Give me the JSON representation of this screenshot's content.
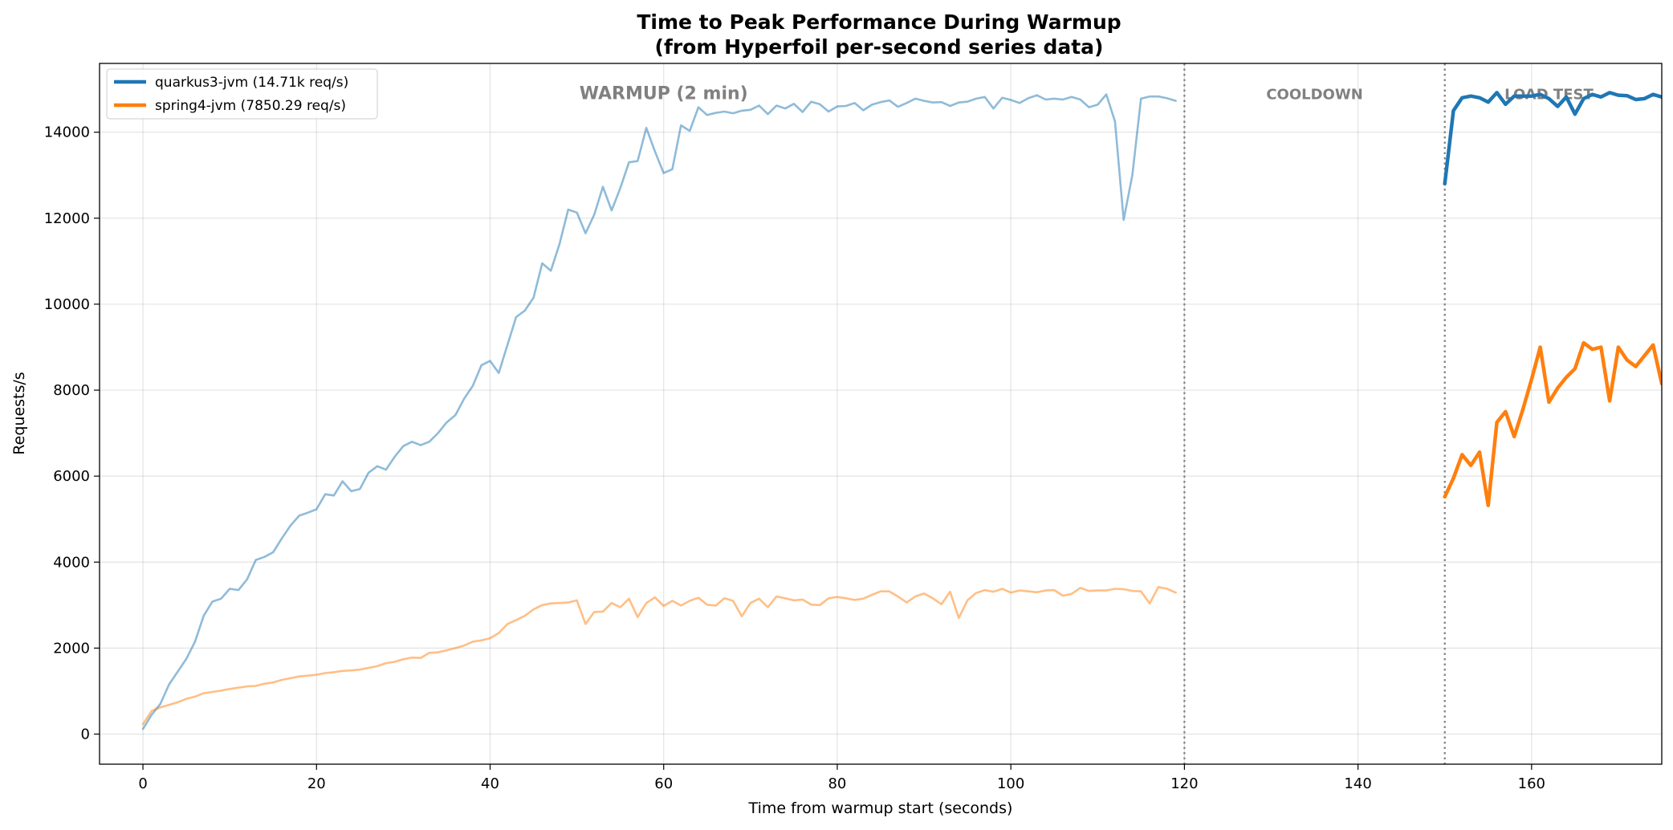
{
  "chart_data": {
    "type": "line",
    "title": "Time to Peak Performance During Warmup",
    "subtitle": "(from Hyperfoil per-second series data)",
    "xlabel": "Time from warmup start (seconds)",
    "ylabel": "Requests/s",
    "xlim": [
      -5,
      175
    ],
    "ylim": [
      -700,
      15600
    ],
    "xticks": [
      0,
      20,
      40,
      60,
      80,
      100,
      120,
      140,
      160
    ],
    "yticks": [
      0,
      2000,
      4000,
      6000,
      8000,
      10000,
      12000,
      14000
    ],
    "grid": true,
    "legend_position": "top-left",
    "phase_boundaries": [
      120,
      150
    ],
    "phases": [
      {
        "label": "WARMUP (2 min)",
        "x": 60,
        "y": 14900
      },
      {
        "label": "COOLDOWN",
        "x": 135,
        "y": 14900
      },
      {
        "label": "LOAD TEST",
        "x": 162,
        "y": 14900
      }
    ],
    "series": [
      {
        "name": "quarkus3-jvm (14.71k req/s)",
        "color": "#1f77b4",
        "warmup": {
          "x": [
            0,
            1,
            2,
            3,
            4,
            5,
            6,
            7,
            8,
            9,
            10,
            11,
            12,
            13,
            14,
            15,
            16,
            17,
            18,
            19,
            20,
            21,
            22,
            23,
            24,
            25,
            26,
            27,
            28,
            29,
            30,
            31,
            32,
            33,
            34,
            35,
            36,
            37,
            38,
            39,
            40,
            41,
            42,
            43,
            44,
            45,
            46,
            47,
            48,
            49,
            50,
            51,
            52,
            53,
            54,
            55,
            56,
            57,
            58,
            59,
            60,
            61,
            62,
            63,
            64,
            65,
            66,
            67,
            68,
            69,
            70,
            71,
            72,
            73,
            74,
            75,
            76,
            77,
            78,
            79,
            80,
            81,
            82,
            83,
            84,
            85,
            86,
            87,
            88,
            89,
            90,
            91,
            92,
            93,
            94,
            95,
            96,
            97,
            98,
            99,
            100,
            101,
            102,
            103,
            104,
            105,
            106,
            107,
            108,
            109,
            110,
            111,
            112,
            113,
            114,
            115,
            116,
            117,
            118,
            119
          ],
          "y": [
            120,
            450,
            700,
            1150,
            1450,
            1750,
            2150,
            2750,
            3080,
            3150,
            3380,
            3350,
            3600,
            4050,
            4120,
            4230,
            4550,
            4850,
            5080,
            5150,
            5230,
            5580,
            5550,
            5880,
            5650,
            5700,
            6080,
            6230,
            6150,
            6450,
            6700,
            6800,
            6720,
            6800,
            7000,
            7250,
            7420,
            7800,
            8100,
            8580,
            8680,
            8400,
            9050,
            9700,
            9850,
            10150,
            10950,
            10780,
            11400,
            12200,
            12130,
            11650,
            12080,
            12730,
            12180,
            12700,
            13300,
            13330,
            14100,
            13550,
            13050,
            13140,
            14160,
            14030,
            14580,
            14400,
            14450,
            14480,
            14440,
            14500,
            14520,
            14620,
            14420,
            14620,
            14550,
            14660,
            14470,
            14710,
            14650,
            14480,
            14600,
            14610,
            14680,
            14510,
            14640,
            14700,
            14740,
            14590,
            14680,
            14780,
            14730,
            14690,
            14700,
            14610,
            14690,
            14710,
            14780,
            14820,
            14550,
            14800,
            14750,
            14680,
            14790,
            14860,
            14760,
            14780,
            14760,
            14820,
            14760,
            14580,
            14640,
            14880,
            14250,
            11960,
            13000,
            14780,
            14830,
            14830,
            14790,
            14730
          ]
        },
        "load_test": {
          "x": [
            150,
            151,
            152,
            153,
            154,
            155,
            156,
            157,
            158,
            159,
            160,
            161,
            162,
            163,
            164,
            165,
            166,
            167,
            168,
            169,
            170,
            171,
            172,
            173,
            174,
            175
          ],
          "y": [
            12800,
            14500,
            14800,
            14840,
            14800,
            14700,
            14920,
            14650,
            14840,
            14840,
            14840,
            14880,
            14780,
            14600,
            14820,
            14420,
            14780,
            14880,
            14820,
            14920,
            14860,
            14850,
            14760,
            14780,
            14880,
            14820
          ]
        }
      },
      {
        "name": "spring4-jvm (7850.29 req/s)",
        "color": "#ff7f0e",
        "warmup": {
          "x": [
            0,
            1,
            2,
            3,
            4,
            5,
            6,
            7,
            8,
            9,
            10,
            11,
            12,
            13,
            14,
            15,
            16,
            17,
            18,
            19,
            20,
            21,
            22,
            23,
            24,
            25,
            26,
            27,
            28,
            29,
            30,
            31,
            32,
            33,
            34,
            35,
            36,
            37,
            38,
            39,
            40,
            41,
            42,
            43,
            44,
            45,
            46,
            47,
            48,
            49,
            50,
            51,
            52,
            53,
            54,
            55,
            56,
            57,
            58,
            59,
            60,
            61,
            62,
            63,
            64,
            65,
            66,
            67,
            68,
            69,
            70,
            71,
            72,
            73,
            74,
            75,
            76,
            77,
            78,
            79,
            80,
            81,
            82,
            83,
            84,
            85,
            86,
            87,
            88,
            89,
            90,
            91,
            92,
            93,
            94,
            95,
            96,
            97,
            98,
            99,
            100,
            101,
            102,
            103,
            104,
            105,
            106,
            107,
            108,
            109,
            110,
            111,
            112,
            113,
            114,
            115,
            116,
            117,
            118,
            119
          ],
          "y": [
            230,
            540,
            620,
            680,
            740,
            820,
            870,
            950,
            980,
            1010,
            1050,
            1080,
            1110,
            1120,
            1170,
            1200,
            1260,
            1300,
            1340,
            1360,
            1380,
            1420,
            1440,
            1470,
            1480,
            1500,
            1540,
            1580,
            1650,
            1680,
            1740,
            1780,
            1770,
            1890,
            1900,
            1950,
            2000,
            2060,
            2150,
            2180,
            2230,
            2350,
            2560,
            2650,
            2750,
            2900,
            3000,
            3040,
            3050,
            3060,
            3110,
            2560,
            2840,
            2850,
            3050,
            2950,
            3150,
            2720,
            3050,
            3180,
            2980,
            3100,
            2990,
            3100,
            3170,
            3010,
            2990,
            3160,
            3100,
            2740,
            3050,
            3150,
            2950,
            3200,
            3160,
            3110,
            3130,
            3010,
            3000,
            3160,
            3190,
            3160,
            3120,
            3150,
            3240,
            3320,
            3320,
            3200,
            3060,
            3200,
            3270,
            3160,
            3020,
            3310,
            2700,
            3110,
            3280,
            3350,
            3310,
            3380,
            3290,
            3340,
            3320,
            3300,
            3340,
            3350,
            3220,
            3260,
            3400,
            3330,
            3340,
            3340,
            3380,
            3370,
            3330,
            3320,
            3040,
            3420,
            3380,
            3290
          ]
        },
        "load_test": {
          "x": [
            150,
            151,
            152,
            153,
            154,
            155,
            156,
            157,
            158,
            159,
            160,
            161,
            162,
            163,
            164,
            165,
            166,
            167,
            168,
            169,
            170,
            171,
            172,
            173,
            174,
            175
          ],
          "y": [
            5520,
            5950,
            6500,
            6250,
            6560,
            5320,
            7250,
            7500,
            6920,
            7550,
            8250,
            9000,
            7720,
            8050,
            8300,
            8500,
            9100,
            8950,
            9000,
            7750,
            9000,
            8700,
            8550,
            8800,
            9050,
            8150
          ]
        }
      }
    ]
  }
}
